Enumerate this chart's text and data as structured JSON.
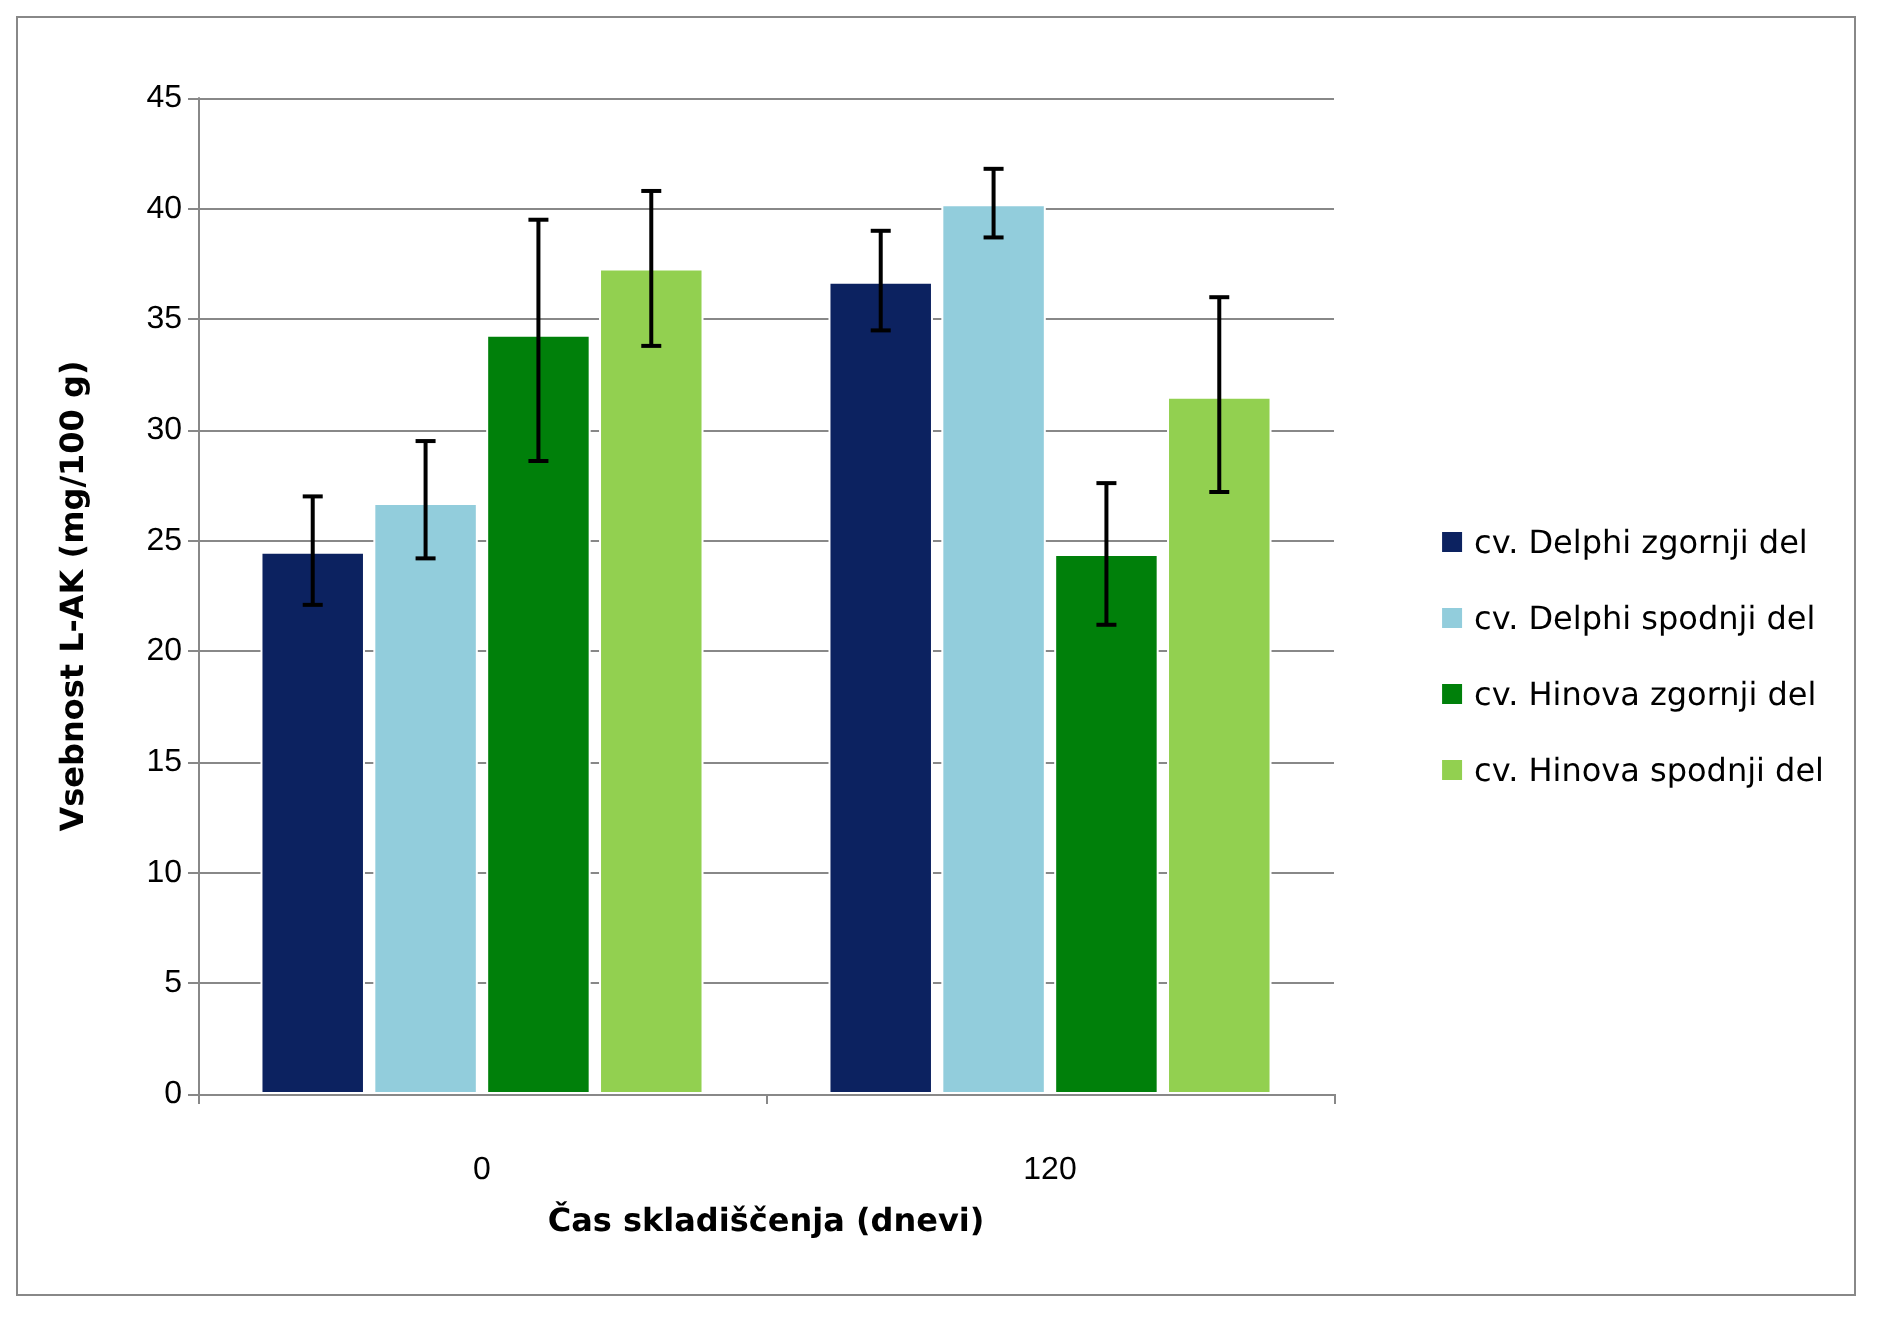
{
  "chart_data": {
    "type": "bar",
    "xlabel": "Čas skladiščenja (dnevi)",
    "ylabel": "Vsebnost L-AK (mg/100 g)",
    "categories": [
      "0",
      "120"
    ],
    "series": [
      {
        "name": "cv. Delphi zgornji del",
        "color": "#0c2260",
        "values": [
          24.5,
          36.7
        ],
        "errors": [
          [
            22.1,
            27.0
          ],
          [
            34.5,
            39.0
          ]
        ]
      },
      {
        "name": "cv. Delphi spodnji del",
        "color": "#92cddc",
        "values": [
          26.7,
          40.2
        ],
        "errors": [
          [
            24.2,
            29.5
          ],
          [
            38.7,
            41.8
          ]
        ]
      },
      {
        "name": "cv. Hinova zgornji del",
        "color": "#00800a",
        "values": [
          34.3,
          24.4
        ],
        "errors": [
          [
            28.6,
            39.5
          ],
          [
            21.2,
            27.6
          ]
        ]
      },
      {
        "name": "cv. Hinova spodnji del",
        "color": "#92d050",
        "values": [
          37.3,
          31.5
        ],
        "errors": [
          [
            33.8,
            40.8
          ],
          [
            27.2,
            36.0
          ]
        ]
      }
    ],
    "ylim": [
      0,
      45
    ],
    "yticks": [
      0,
      5,
      10,
      15,
      20,
      25,
      30,
      35,
      40,
      45
    ],
    "grid": "y",
    "legend": "right"
  }
}
